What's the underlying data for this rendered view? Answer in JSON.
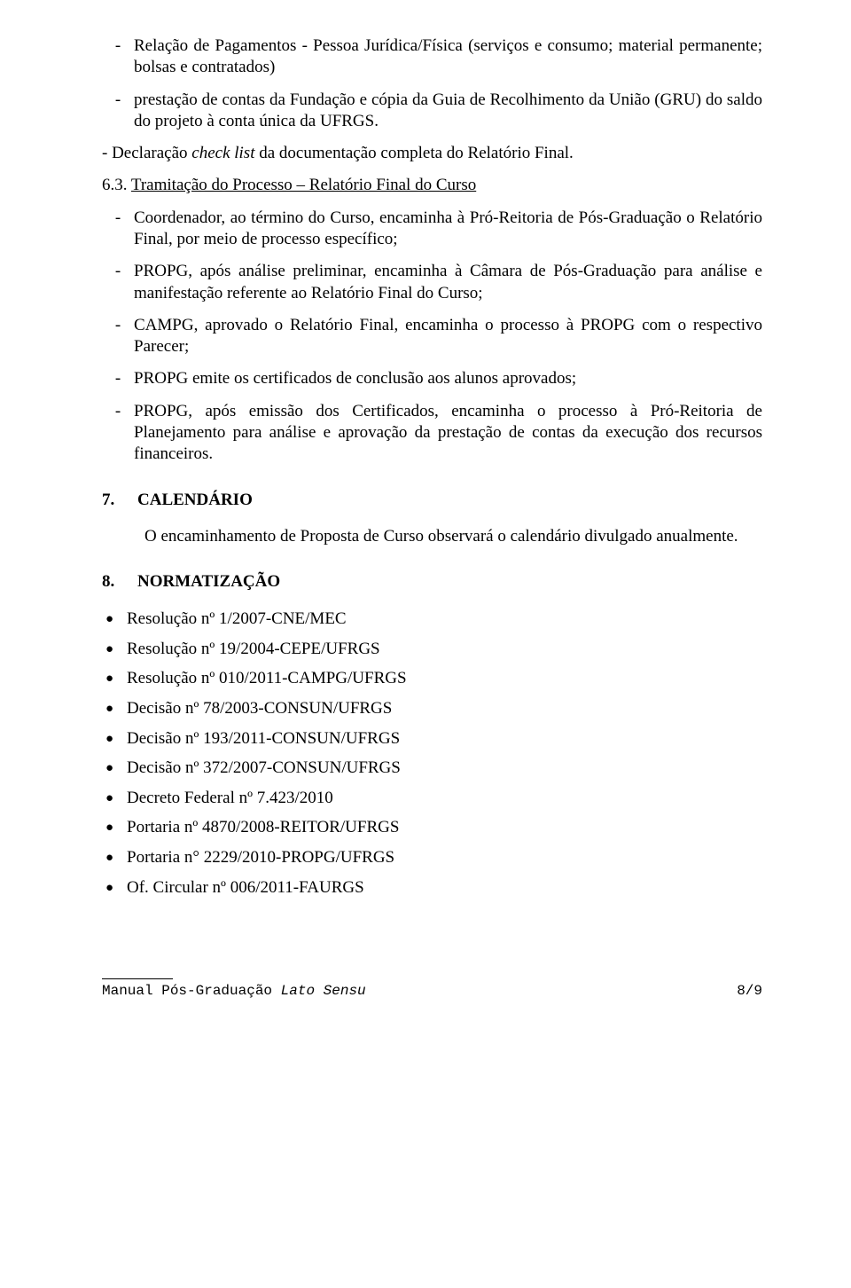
{
  "top_items": [
    "Relação de Pagamentos - Pessoa Jurídica/Física (serviços e consumo; material permanente; bolsas e contratados)",
    "prestação de contas da Fundação e cópia da Guia de Recolhimento da União (GRU) do saldo do projeto à conta única da UFRGS."
  ],
  "declaracao_prefix": "- Declaração ",
  "declaracao_italic": "check list",
  "declaracao_suffix": " da documentação completa do Relatório Final.",
  "sub63_num": "6.3. ",
  "sub63_title": "Tramitação do Processo – Relatório Final do Curso",
  "sub63_items": [
    "Coordenador, ao término do Curso, encaminha à Pró-Reitoria de Pós-Graduação o Relatório Final, por meio de processo específico;",
    "PROPG, após análise preliminar, encaminha à Câmara de Pós-Graduação para análise e manifestação referente ao Relatório Final do Curso;",
    "CAMPG, aprovado o Relatório Final, encaminha o processo à PROPG com o respectivo Parecer;",
    "PROPG emite os certificados de conclusão aos alunos aprovados;",
    "PROPG, após emissão dos Certificados, encaminha o processo à Pró-Reitoria de Planejamento para análise e aprovação da prestação de contas da execução dos recursos financeiros."
  ],
  "sec7_num": "7.",
  "sec7_title": "CALENDÁRIO",
  "sec7_body": "O encaminhamento de Proposta de Curso observará o calendário divulgado anualmente.",
  "sec8_num": "8.",
  "sec8_title": "NORMATIZAÇÃO",
  "sec8_bullets": [
    "Resolução nº 1/2007-CNE/MEC",
    "Resolução nº 19/2004-CEPE/UFRGS",
    "Resolução nº 010/2011-CAMPG/UFRGS",
    "Decisão nº 78/2003-CONSUN/UFRGS",
    "Decisão nº 193/2011-CONSUN/UFRGS",
    "Decisão nº 372/2007-CONSUN/UFRGS",
    "Decreto Federal nº 7.423/2010",
    "Portaria nº 4870/2008-REITOR/UFRGS",
    "Portaria n° 2229/2010-PROPG/UFRGS",
    "Of. Circular nº 006/2011-FAURGS"
  ],
  "footer_left_a": "Manual Pós-Graduação ",
  "footer_left_b": "Lato Sensu",
  "footer_right": "8/9"
}
